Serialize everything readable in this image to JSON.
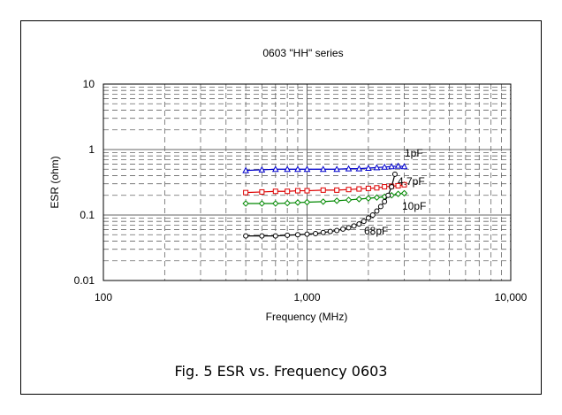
{
  "caption": "Fig. 5 ESR vs. Frequency 0603",
  "chart_data": {
    "type": "line",
    "title": "0603 \"HH\" series",
    "xlabel": "Frequency (MHz)",
    "ylabel": "ESR (ohm)",
    "xscale": "log",
    "yscale": "log",
    "xlim": [
      100,
      10000
    ],
    "ylim": [
      0.01,
      10
    ],
    "xticks": [
      {
        "value": 100,
        "label": "100"
      },
      {
        "value": 1000,
        "label": "1,000"
      },
      {
        "value": 10000,
        "label": "10,000"
      }
    ],
    "yticks": [
      {
        "value": 10,
        "label": "10"
      },
      {
        "value": 1,
        "label": "1"
      },
      {
        "value": 0.1,
        "label": "0.1"
      },
      {
        "value": 0.01,
        "label": "0.01"
      }
    ],
    "grid": true,
    "series": [
      {
        "name": "1pF",
        "color": "#0000cc",
        "marker": "triangle",
        "x": [
          500,
          600,
          700,
          800,
          900,
          1000,
          1200,
          1400,
          1600,
          1800,
          2000,
          2200,
          2400,
          2600,
          2800,
          3000
        ],
        "y": [
          0.48,
          0.49,
          0.5,
          0.5,
          0.5,
          0.5,
          0.5,
          0.5,
          0.51,
          0.51,
          0.52,
          0.53,
          0.54,
          0.55,
          0.56,
          0.55
        ]
      },
      {
        "name": "4.7pF",
        "color": "#dd0000",
        "marker": "square",
        "x": [
          500,
          600,
          700,
          800,
          900,
          1000,
          1200,
          1400,
          1600,
          1800,
          2000,
          2200,
          2400,
          2600,
          2800,
          3000
        ],
        "y": [
          0.22,
          0.225,
          0.23,
          0.23,
          0.235,
          0.235,
          0.24,
          0.24,
          0.245,
          0.25,
          0.255,
          0.26,
          0.27,
          0.275,
          0.28,
          0.29
        ]
      },
      {
        "name": "10pF",
        "color": "#008800",
        "marker": "diamond",
        "x": [
          500,
          600,
          700,
          800,
          900,
          1000,
          1200,
          1400,
          1600,
          1800,
          2000,
          2200,
          2400,
          2600,
          2800,
          3000
        ],
        "y": [
          0.15,
          0.15,
          0.15,
          0.152,
          0.155,
          0.157,
          0.16,
          0.165,
          0.17,
          0.175,
          0.18,
          0.185,
          0.19,
          0.2,
          0.21,
          0.215
        ]
      },
      {
        "name": "68pF",
        "color": "#000000",
        "marker": "circle",
        "x": [
          500,
          600,
          700,
          800,
          900,
          1000,
          1100,
          1200,
          1300,
          1400,
          1500,
          1600,
          1700,
          1800,
          1900,
          2000,
          2100,
          2200,
          2300,
          2400,
          2500,
          2600,
          2700
        ],
        "y": [
          0.048,
          0.048,
          0.048,
          0.049,
          0.05,
          0.051,
          0.052,
          0.054,
          0.056,
          0.058,
          0.061,
          0.064,
          0.068,
          0.073,
          0.08,
          0.09,
          0.1,
          0.115,
          0.135,
          0.16,
          0.2,
          0.27,
          0.42
        ]
      }
    ]
  }
}
